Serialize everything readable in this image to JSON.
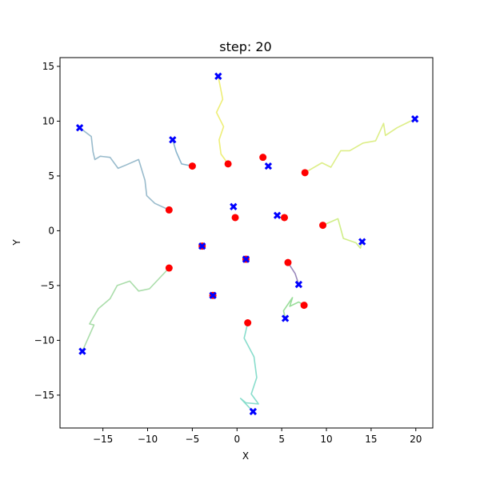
{
  "chart_data": {
    "type": "scatter",
    "title": "step: 20",
    "xlabel": "X",
    "ylabel": "Y",
    "xlim": [
      -19.8,
      21.9
    ],
    "ylim": [
      -18.0,
      15.8
    ],
    "xticks": [
      -15,
      -10,
      -5,
      0,
      5,
      10,
      15,
      20
    ],
    "yticks": [
      -15,
      -10,
      -5,
      0,
      5,
      10,
      15
    ],
    "grid": false,
    "colors": {
      "current_position": "#ff0000",
      "goal_marker": "#0000ff",
      "axis": "#000000"
    },
    "agents": [
      {
        "color": "#eeee77",
        "goal": [
          -2.1,
          14.1
        ],
        "current": [
          -1.0,
          6.1
        ],
        "path": [
          [
            -1.0,
            6.1
          ],
          [
            -1.8,
            7.0
          ],
          [
            -2.0,
            8.3
          ],
          [
            -1.5,
            9.5
          ],
          [
            -2.3,
            10.8
          ],
          [
            -1.6,
            12.0
          ],
          [
            -2.1,
            14.1
          ]
        ]
      },
      {
        "color": "#99bbcc",
        "goal": [
          -17.6,
          9.4
        ],
        "current": [
          -7.6,
          1.9
        ],
        "path": [
          [
            -7.6,
            1.9
          ],
          [
            -9.2,
            2.5
          ],
          [
            -10.1,
            3.2
          ],
          [
            -10.3,
            4.6
          ],
          [
            -11.0,
            6.5
          ],
          [
            -12.4,
            6.0
          ],
          [
            -13.3,
            5.7
          ],
          [
            -14.2,
            6.7
          ],
          [
            -15.3,
            6.8
          ],
          [
            -15.9,
            6.5
          ],
          [
            -16.1,
            7.2
          ],
          [
            -16.3,
            8.6
          ],
          [
            -17.6,
            9.4
          ]
        ]
      },
      {
        "color": "#88b4cc",
        "goal": [
          -7.2,
          8.3
        ],
        "current": [
          -5.0,
          5.9
        ],
        "path": [
          [
            -5.0,
            5.9
          ],
          [
            -6.2,
            6.1
          ],
          [
            -6.8,
            7.2
          ],
          [
            -7.2,
            8.3
          ]
        ]
      },
      {
        "color": "#ddee88",
        "goal": [
          19.9,
          10.2
        ],
        "current": [
          7.6,
          5.3
        ],
        "path": [
          [
            7.6,
            5.3
          ],
          [
            9.5,
            6.2
          ],
          [
            10.5,
            5.8
          ],
          [
            11.6,
            7.3
          ],
          [
            12.6,
            7.3
          ],
          [
            14.1,
            8.0
          ],
          [
            15.5,
            8.2
          ],
          [
            16.4,
            9.8
          ],
          [
            16.6,
            8.7
          ],
          [
            17.9,
            9.4
          ],
          [
            19.9,
            10.2
          ]
        ]
      },
      {
        "color": "#d0ee88",
        "goal": [
          14.0,
          -1.0
        ],
        "current": [
          9.6,
          0.5
        ],
        "path": [
          [
            9.6,
            0.5
          ],
          [
            11.3,
            1.1
          ],
          [
            11.9,
            -0.7
          ],
          [
            13.3,
            -1.1
          ],
          [
            13.8,
            -1.6
          ],
          [
            14.0,
            -1.0
          ]
        ]
      },
      {
        "color": "#aaddaa",
        "goal": [
          -17.3,
          -11.0
        ],
        "current": [
          -7.6,
          -3.4
        ],
        "path": [
          [
            -7.6,
            -3.4
          ],
          [
            -9.8,
            -5.3
          ],
          [
            -11.0,
            -5.5
          ],
          [
            -12.0,
            -4.6
          ],
          [
            -13.4,
            -5.0
          ],
          [
            -14.2,
            -6.2
          ],
          [
            -15.5,
            -7.1
          ],
          [
            -16.5,
            -8.5
          ],
          [
            -16.0,
            -8.6
          ],
          [
            -17.3,
            -11.0
          ]
        ]
      },
      {
        "color": "#88ddcc",
        "goal": [
          1.8,
          -16.5
        ],
        "current": [
          1.2,
          -8.4
        ],
        "path": [
          [
            1.2,
            -8.4
          ],
          [
            0.8,
            -9.8
          ],
          [
            1.9,
            -11.5
          ],
          [
            2.2,
            -13.4
          ],
          [
            1.6,
            -14.9
          ],
          [
            2.4,
            -15.8
          ],
          [
            1.0,
            -15.7
          ],
          [
            0.4,
            -15.3
          ],
          [
            1.8,
            -16.5
          ]
        ]
      },
      {
        "color": "#99dd99",
        "goal": [
          5.4,
          -8.0
        ],
        "current": [
          7.5,
          -6.8
        ],
        "path": [
          [
            7.5,
            -6.8
          ],
          [
            6.9,
            -6.5
          ],
          [
            5.9,
            -6.9
          ],
          [
            6.2,
            -6.1
          ],
          [
            5.2,
            -7.3
          ],
          [
            5.4,
            -8.0
          ]
        ]
      },
      {
        "color": "#9988bb",
        "goal": [
          6.9,
          -4.9
        ],
        "current": [
          5.7,
          -2.9
        ],
        "path": [
          [
            5.7,
            -2.9
          ],
          [
            6.5,
            -3.9
          ],
          [
            6.9,
            -4.9
          ]
        ]
      }
    ],
    "stationary": [
      {
        "goal": [
          -0.4,
          2.2
        ],
        "current": [
          -0.2,
          1.2
        ]
      },
      {
        "goal": [
          4.5,
          1.4
        ],
        "current": [
          5.3,
          1.2
        ]
      },
      {
        "goal": [
          3.5,
          5.9
        ],
        "current": [
          2.9,
          6.7
        ]
      },
      {
        "goal": [
          -3.9,
          -1.4
        ],
        "current": [
          -3.9,
          -1.4
        ]
      },
      {
        "goal": [
          1.0,
          -2.6
        ],
        "current": [
          1.0,
          -2.6
        ]
      },
      {
        "goal": [
          -2.7,
          -5.9
        ],
        "current": [
          -2.7,
          -5.9
        ]
      }
    ]
  }
}
